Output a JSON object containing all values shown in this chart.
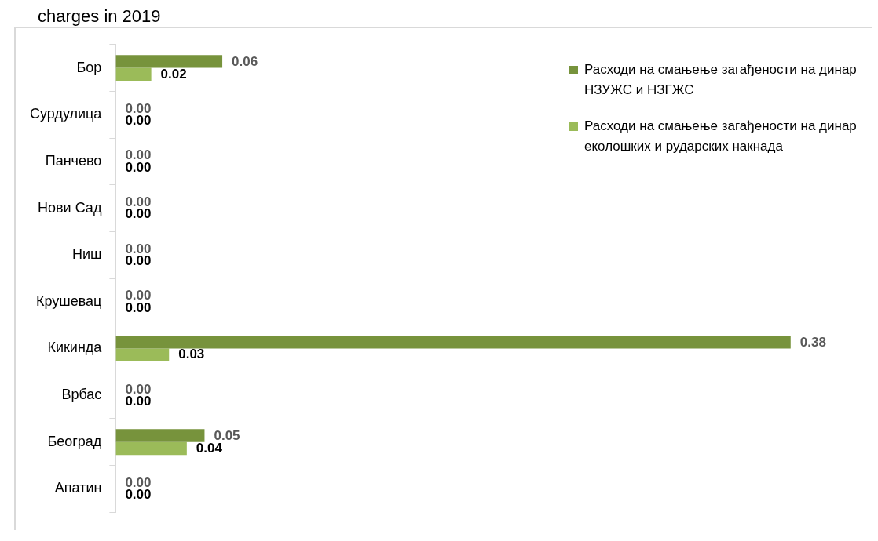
{
  "chart_data": {
    "type": "bar",
    "title": "charges in 2019",
    "orientation": "horizontal",
    "legend": "top right",
    "categories": [
      "Бор",
      "Сурдулица",
      "Панчево",
      "Нови Сад",
      "Ниш",
      "Крушевац",
      "Кикинда",
      "Врбас",
      "Београд",
      "Апатин"
    ],
    "series": [
      {
        "name": "Расходи на смањење загађености на динар НЗУЖС и НЗГЖС",
        "color": "#77933c",
        "values": [
          0.06,
          0,
          0,
          0,
          0,
          0,
          0.38,
          0,
          0.05,
          0
        ],
        "value_labels": [
          "0.06",
          "0.00",
          "0.00",
          "0.00",
          "0.00",
          "0.00",
          "0.38",
          "0.00",
          "0.05",
          "0.00"
        ]
      },
      {
        "name": "Расходи на смањење загађености на динар еколошких и рударских накнада",
        "color": "#9bbb59",
        "values": [
          0.02,
          0,
          0,
          0,
          0,
          0,
          0.03,
          0,
          0.04,
          0
        ],
        "value_labels": [
          "0.02",
          "0.00",
          "0.00",
          "0.00",
          "0.00",
          "0.00",
          "0.03",
          "0.00",
          "0.04",
          "0.00"
        ]
      }
    ]
  }
}
